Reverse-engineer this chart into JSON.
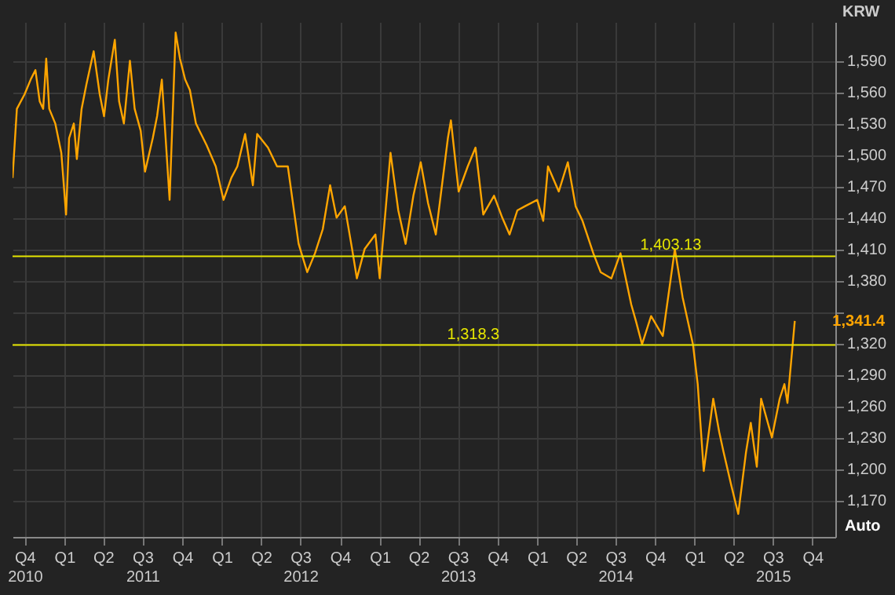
{
  "chart_data": {
    "type": "line",
    "ylabel": "KRW",
    "x": [
      "2010-09-03",
      "2010-09-13",
      "2010-10-01",
      "2010-10-15",
      "2010-10-26",
      "2010-11-05",
      "2010-11-13",
      "2010-11-20",
      "2010-11-27",
      "2010-12-11",
      "2010-12-25",
      "2011-01-05",
      "2011-01-12",
      "2011-01-23",
      "2011-01-30",
      "2011-02-10",
      "2011-02-21",
      "2011-03-10",
      "2011-03-24",
      "2011-04-03",
      "2011-04-13",
      "2011-04-28",
      "2011-05-08",
      "2011-05-19",
      "2011-06-02",
      "2011-06-13",
      "2011-06-27",
      "2011-07-07",
      "2011-07-25",
      "2011-08-04",
      "2011-08-15",
      "2011-09-02",
      "2011-09-16",
      "2011-09-26",
      "2011-10-08",
      "2011-10-19",
      "2011-11-02",
      "2011-11-27",
      "2011-12-18",
      "2012-01-05",
      "2012-01-23",
      "2012-02-06",
      "2012-02-24",
      "2012-03-13",
      "2012-03-23",
      "2012-04-17",
      "2012-05-08",
      "2012-06-02",
      "2012-06-27",
      "2012-07-17",
      "2012-08-04",
      "2012-08-22",
      "2012-09-08",
      "2012-09-23",
      "2012-10-12",
      "2012-10-29",
      "2012-11-09",
      "2012-11-27",
      "2012-12-22",
      "2013-01-01",
      "2013-01-26",
      "2013-02-13",
      "2013-03-02",
      "2013-03-20",
      "2013-04-06",
      "2013-04-23",
      "2013-05-11",
      "2013-06-08",
      "2013-06-15",
      "2013-07-03",
      "2013-07-24",
      "2013-08-11",
      "2013-08-29",
      "2013-09-23",
      "2013-10-12",
      "2013-10-29",
      "2013-11-16",
      "2013-12-04",
      "2014-01-01",
      "2014-01-15",
      "2014-01-26",
      "2014-02-20",
      "2014-03-13",
      "2014-03-31",
      "2014-04-16",
      "2014-05-11",
      "2014-05-28",
      "2014-06-22",
      "2014-07-13",
      "2014-08-07",
      "2014-08-18",
      "2014-09-01",
      "2014-09-22",
      "2014-10-19",
      "2014-11-16",
      "2014-12-04",
      "2014-12-28",
      "2015-01-08",
      "2015-01-22",
      "2015-02-13",
      "2015-02-27",
      "2015-03-09",
      "2015-03-27",
      "2015-04-12",
      "2015-04-30",
      "2015-05-11",
      "2015-05-25",
      "2015-06-04",
      "2015-06-29",
      "2015-07-17",
      "2015-07-28",
      "2015-08-04",
      "2015-08-21"
    ],
    "series": [
      {
        "color": "#ffa500",
        "values": [
          1478,
          1544,
          1558,
          1572,
          1581,
          1551,
          1544,
          1592,
          1544,
          1530,
          1502,
          1443,
          1516,
          1530,
          1496,
          1544,
          1567,
          1599,
          1558,
          1537,
          1572,
          1610,
          1551,
          1530,
          1590,
          1544,
          1523,
          1484,
          1516,
          1537,
          1572,
          1457,
          1617,
          1592,
          1572,
          1562,
          1530,
          1509,
          1489,
          1457,
          1478,
          1489,
          1520,
          1471,
          1520,
          1507,
          1489,
          1489,
          1415,
          1388,
          1406,
          1429,
          1471,
          1440,
          1451,
          1410,
          1382,
          1410,
          1424,
          1382,
          1502,
          1447,
          1415,
          1461,
          1493,
          1454,
          1424,
          1516,
          1533,
          1465,
          1489,
          1507,
          1443,
          1461,
          1440,
          1424,
          1447,
          1451,
          1457,
          1437,
          1489,
          1465,
          1493,
          1451,
          1437,
          1406,
          1388,
          1382,
          1406,
          1357,
          1341,
          1319,
          1346,
          1327,
          1410,
          1364,
          1319,
          1281,
          1198,
          1267,
          1235,
          1216,
          1184,
          1157,
          1216,
          1244,
          1202,
          1267,
          1230,
          1267,
          1281,
          1263,
          1341.4
        ]
      }
    ],
    "xlim": [
      "2010-09-03",
      "2015-11-23"
    ],
    "xticks": [
      {
        "value": "2010-10-01",
        "label": "Q4\n2010"
      },
      {
        "value": "2011-01-01",
        "label": "Q1"
      },
      {
        "value": "2011-04-01",
        "label": "Q2"
      },
      {
        "value": "2011-07-01",
        "label": "Q3\n2011"
      },
      {
        "value": "2011-10-01",
        "label": "Q4"
      },
      {
        "value": "2012-01-01",
        "label": "Q1"
      },
      {
        "value": "2012-04-01",
        "label": "Q2"
      },
      {
        "value": "2012-07-01",
        "label": "Q3\n2012"
      },
      {
        "value": "2012-10-01",
        "label": "Q4"
      },
      {
        "value": "2013-01-01",
        "label": "Q1"
      },
      {
        "value": "2013-04-01",
        "label": "Q2"
      },
      {
        "value": "2013-07-01",
        "label": "Q3\n2013"
      },
      {
        "value": "2013-10-01",
        "label": "Q4"
      },
      {
        "value": "2014-01-01",
        "label": "Q1"
      },
      {
        "value": "2014-04-01",
        "label": "Q2"
      },
      {
        "value": "2014-07-01",
        "label": "Q3\n2014"
      },
      {
        "value": "2014-10-01",
        "label": "Q4"
      },
      {
        "value": "2015-01-01",
        "label": "Q1"
      },
      {
        "value": "2015-04-01",
        "label": "Q2"
      },
      {
        "value": "2015-07-01",
        "label": "Q3\n2015"
      },
      {
        "value": "2015-10-01",
        "label": "Q4"
      }
    ],
    "ylim": [
      1135,
      1627
    ],
    "yticks": [
      {
        "value": 1170,
        "label": "1,170"
      },
      {
        "value": 1200,
        "label": "1,200"
      },
      {
        "value": 1230,
        "label": "1,230"
      },
      {
        "value": 1260,
        "label": "1,260"
      },
      {
        "value": 1290,
        "label": "1,290"
      },
      {
        "value": 1320,
        "label": "1,320"
      },
      {
        "value": 1350,
        "label": null
      },
      {
        "value": 1380,
        "label": "1,380"
      },
      {
        "value": 1410,
        "label": "1,410"
      },
      {
        "value": 1440,
        "label": "1,440"
      },
      {
        "value": 1470,
        "label": "1,470"
      },
      {
        "value": 1500,
        "label": "1,500"
      },
      {
        "value": 1530,
        "label": "1,530"
      },
      {
        "value": 1560,
        "label": "1,560"
      },
      {
        "value": 1590,
        "label": "1,590"
      }
    ],
    "ref_lines": [
      {
        "axis": "y",
        "value": 1403.13,
        "label": "1,403.13",
        "color": "#e6e600"
      },
      {
        "axis": "y",
        "value": 1318.3,
        "label": "1,318.3",
        "color": "#e6e600"
      }
    ],
    "annotations": [
      {
        "text": "1,341.4",
        "x": "2015-08-21",
        "y": 1341.4
      },
      "Auto"
    ],
    "grid": true
  }
}
